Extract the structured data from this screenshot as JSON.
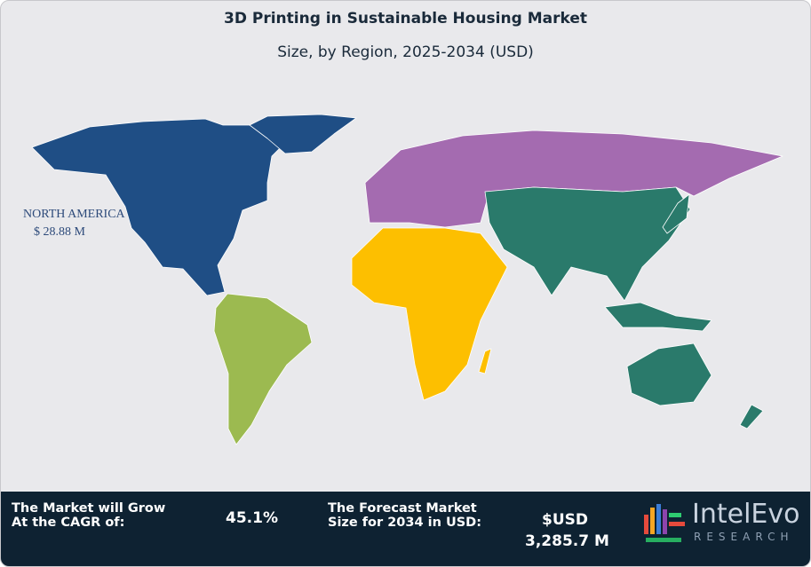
{
  "header": {
    "title": "3D Printing in Sustainable Housing Market",
    "subtitle": "Size, by Region, 2025-2034 (USD)"
  },
  "map": {
    "regions": [
      {
        "label": "NORTH AMERICA",
        "value": "$ 28.88 M"
      }
    ]
  },
  "footer": {
    "cagr_label": [
      "The Market will Grow",
      "At the CAGR of:"
    ],
    "cagr_value": "45.1%",
    "forecast_label": [
      "The Forecast Market",
      "Size for 2034 in USD:"
    ],
    "forecast_currency": "$USD",
    "forecast_value": "3,285.7 M",
    "logo": {
      "name": "IntelEvo",
      "tagline": "RESEARCH"
    }
  }
}
